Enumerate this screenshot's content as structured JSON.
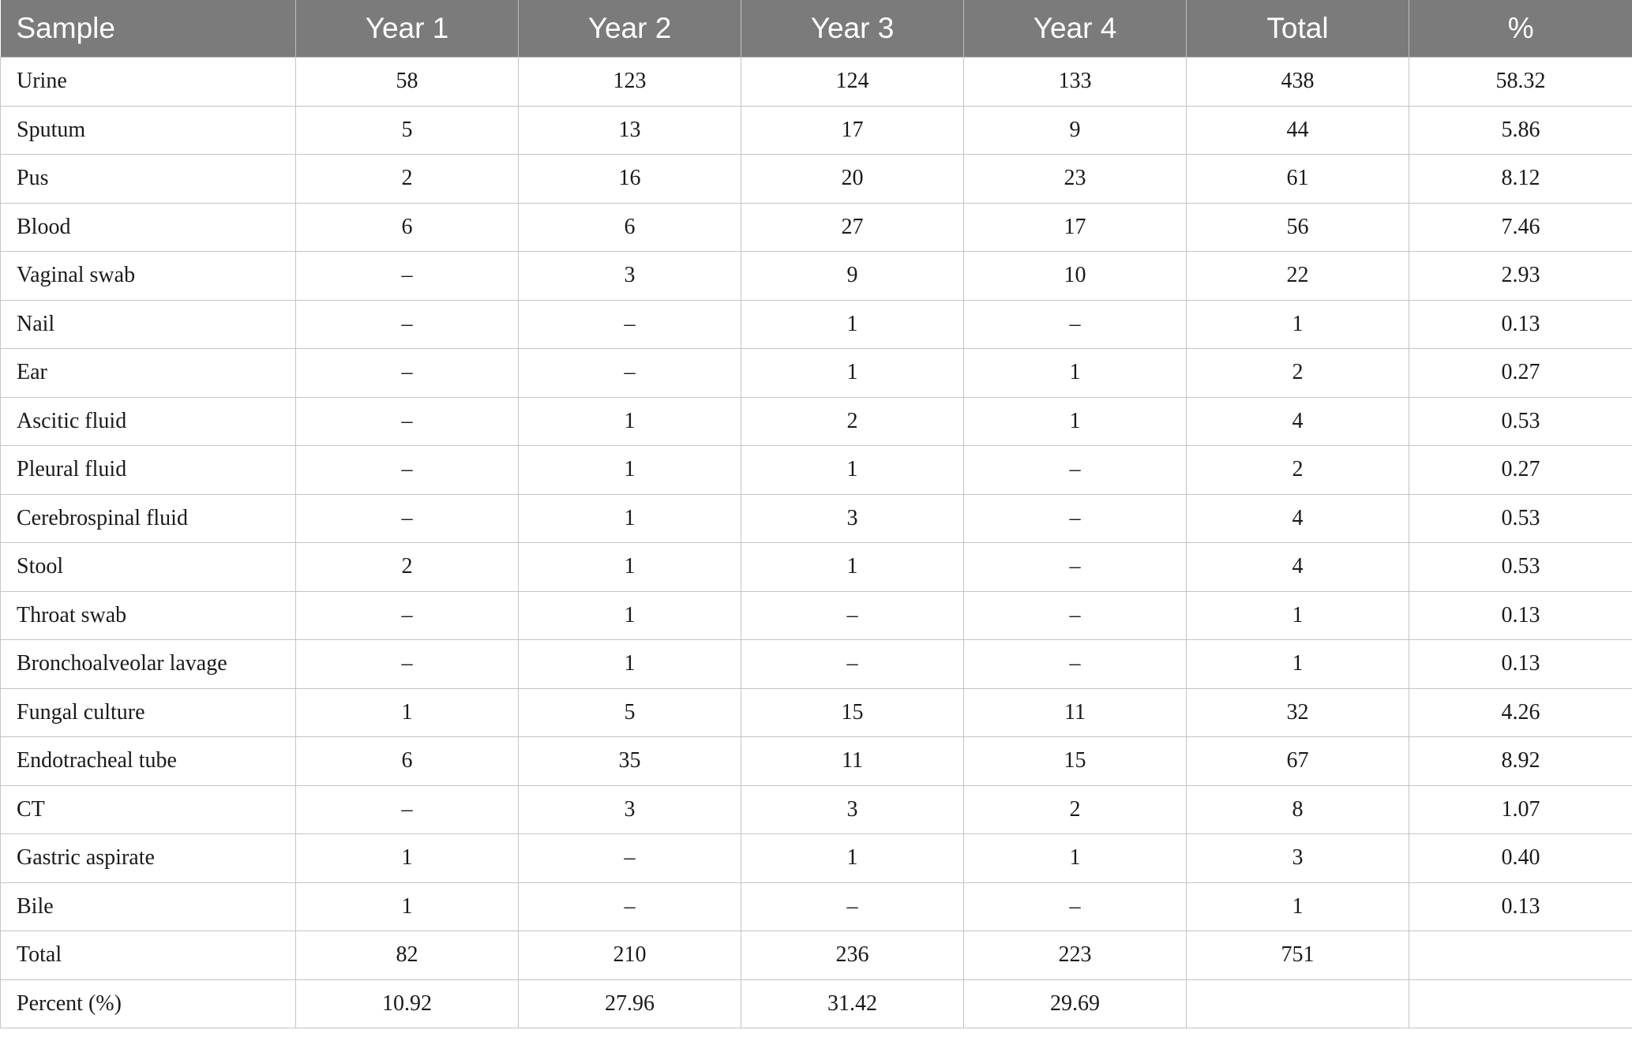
{
  "table": {
    "headers": [
      "Sample",
      "Year 1",
      "Year 2",
      "Year 3",
      "Year 4",
      "Total",
      "%"
    ],
    "rows": [
      [
        "Urine",
        "58",
        "123",
        "124",
        "133",
        "438",
        "58.32"
      ],
      [
        "Sputum",
        "5",
        "13",
        "17",
        "9",
        "44",
        "5.86"
      ],
      [
        "Pus",
        "2",
        "16",
        "20",
        "23",
        "61",
        "8.12"
      ],
      [
        "Blood",
        "6",
        "6",
        "27",
        "17",
        "56",
        "7.46"
      ],
      [
        "Vaginal swab",
        "–",
        "3",
        "9",
        "10",
        "22",
        "2.93"
      ],
      [
        "Nail",
        "–",
        "–",
        "1",
        "–",
        "1",
        "0.13"
      ],
      [
        "Ear",
        "–",
        "–",
        "1",
        "1",
        "2",
        "0.27"
      ],
      [
        "Ascitic fluid",
        "–",
        "1",
        "2",
        "1",
        "4",
        "0.53"
      ],
      [
        "Pleural fluid",
        "–",
        "1",
        "1",
        "–",
        "2",
        "0.27"
      ],
      [
        "Cerebrospinal fluid",
        "–",
        "1",
        "3",
        "–",
        "4",
        "0.53"
      ],
      [
        "Stool",
        "2",
        "1",
        "1",
        "–",
        "4",
        "0.53"
      ],
      [
        "Throat swab",
        "–",
        "1",
        "–",
        "–",
        "1",
        "0.13"
      ],
      [
        "Bronchoalveolar lavage",
        "–",
        "1",
        "–",
        "–",
        "1",
        "0.13"
      ],
      [
        "Fungal culture",
        "1",
        "5",
        "15",
        "11",
        "32",
        "4.26"
      ],
      [
        "Endotracheal tube",
        "6",
        "35",
        "11",
        "15",
        "67",
        "8.92"
      ],
      [
        "CT",
        "–",
        "3",
        "3",
        "2",
        "8",
        "1.07"
      ],
      [
        "Gastric aspirate",
        "1",
        "–",
        "1",
        "1",
        "3",
        "0.40"
      ],
      [
        "Bile",
        "1",
        "–",
        "–",
        "–",
        "1",
        "0.13"
      ],
      [
        "Total",
        "82",
        "210",
        "236",
        "223",
        "751",
        ""
      ],
      [
        "Percent (%)",
        "10.92",
        "27.96",
        "31.42",
        "29.69",
        "",
        ""
      ]
    ]
  }
}
